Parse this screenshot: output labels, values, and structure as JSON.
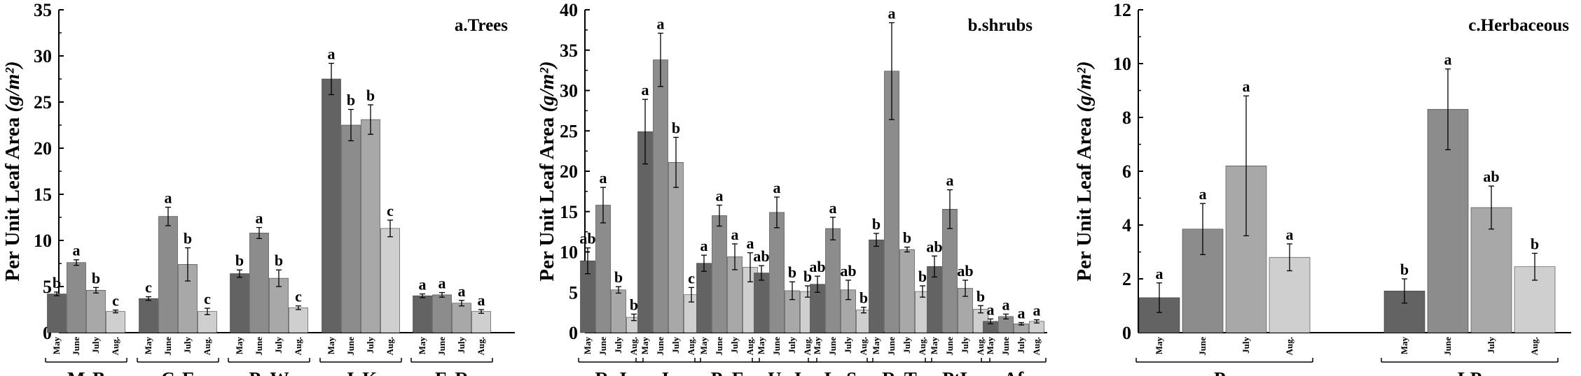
{
  "chart_data": [
    {
      "type": "bar",
      "panel_label": "a.Trees",
      "ylabel": "Per Unit Leaf Area (g/m²)",
      "ylabel_main": "Per Unit Leaf Area ",
      "ylabel_unit": "(g/m²)",
      "ylim": [
        0,
        35
      ],
      "yticks": [
        "0",
        "5",
        "10",
        "15",
        "20",
        "25",
        "30",
        "35"
      ],
      "months": [
        "May",
        "June",
        "July",
        "Aug."
      ],
      "groups": [
        {
          "name": "MsB",
          "values": [
            4.2,
            7.6,
            4.6,
            2.3
          ],
          "errors": [
            0.2,
            0.3,
            0.3,
            0.15
          ],
          "letters": [
            "b",
            "a",
            "b",
            "c"
          ]
        },
        {
          "name": "CsE",
          "values": [
            3.7,
            12.6,
            7.4,
            2.3
          ],
          "errors": [
            0.2,
            1.0,
            1.8,
            0.35
          ],
          "letters": [
            "c",
            "a",
            "b",
            "c"
          ]
        },
        {
          "name": "PaW",
          "values": [
            6.4,
            10.8,
            5.9,
            2.7
          ],
          "errors": [
            0.4,
            0.6,
            0.9,
            0.2
          ],
          "letters": [
            "b",
            "a",
            "b",
            "c"
          ]
        },
        {
          "name": "JcK",
          "values": [
            27.5,
            22.5,
            23.1,
            11.3
          ],
          "errors": [
            1.7,
            1.7,
            1.6,
            0.9
          ],
          "letters": [
            "a",
            "b",
            "b",
            "c"
          ]
        },
        {
          "name": "FcR",
          "values": [
            4.0,
            4.1,
            3.2,
            2.3
          ],
          "errors": [
            0.2,
            0.25,
            0.3,
            0.2
          ],
          "letters": [
            "a",
            "a",
            "a",
            "a"
          ]
        }
      ]
    },
    {
      "type": "bar",
      "panel_label": "b.shrubs",
      "ylabel": "Per Unit Leaf Area (g/m²)",
      "ylabel_main": "Per Unit Leaf Area ",
      "ylabel_unit": "(g/m²)",
      "ylim": [
        0,
        40
      ],
      "yticks": [
        "0",
        "5",
        "10",
        "15",
        "20",
        "25",
        "30",
        "35",
        "40"
      ],
      "months": [
        "May",
        "June",
        "July",
        "Aug."
      ],
      "groups": [
        {
          "name": "RcJ",
          "values": [
            8.9,
            15.8,
            5.3,
            1.9
          ],
          "errors": [
            1.6,
            2.2,
            0.4,
            0.4
          ],
          "letters": [
            "ab",
            "a",
            "b",
            "b"
          ]
        },
        {
          "name": "Jc",
          "values": [
            24.9,
            33.8,
            21.1,
            4.7
          ],
          "errors": [
            4.0,
            3.3,
            3.1,
            0.9
          ],
          "letters": [
            "a",
            "a",
            "b",
            "c"
          ]
        },
        {
          "name": "PoF",
          "values": [
            8.6,
            14.5,
            9.4,
            8.1
          ],
          "errors": [
            1.0,
            1.3,
            1.6,
            1.8
          ],
          "letters": [
            "a",
            "a",
            "a",
            "a"
          ]
        },
        {
          "name": "UpJ",
          "values": [
            7.4,
            14.9,
            5.2,
            5.1
          ],
          "errors": [
            0.9,
            1.9,
            1.1,
            0.7
          ],
          "letters": [
            "ab",
            "a",
            "b",
            "b"
          ]
        },
        {
          "name": "LoS",
          "values": [
            6.0,
            12.9,
            5.3,
            2.8
          ],
          "errors": [
            1.0,
            1.4,
            1.2,
            0.35
          ],
          "letters": [
            "ab",
            "a",
            "ab",
            "b"
          ]
        },
        {
          "name": "RrT",
          "values": [
            11.5,
            32.4,
            10.3,
            5.1
          ],
          "errors": [
            0.8,
            6.0,
            0.3,
            0.7
          ],
          "letters": [
            "b",
            "a",
            "b",
            "b"
          ]
        },
        {
          "name": "PtL",
          "values": [
            8.2,
            15.3,
            5.5,
            2.9
          ],
          "errors": [
            1.3,
            2.4,
            1.0,
            0.45
          ],
          "letters": [
            "ab",
            "a",
            "ab",
            "b"
          ]
        },
        {
          "name": "Af",
          "values": [
            1.4,
            2.0,
            1.1,
            1.4
          ],
          "errors": [
            0.3,
            0.3,
            0.15,
            0.2
          ],
          "letters": [
            "a",
            "a",
            "a",
            "a"
          ]
        }
      ]
    },
    {
      "type": "bar",
      "panel_label": "c.Herbaceous",
      "ylabel": "Per Unit Leaf Area (g/m²)",
      "ylabel_main": "Per Unit Leaf Area ",
      "ylabel_unit": "(g/m²)",
      "ylim": [
        0,
        12
      ],
      "yticks": [
        "0",
        "2",
        "4",
        "6",
        "8",
        "10",
        "12"
      ],
      "months": [
        "May",
        "June",
        "July",
        "Aug."
      ],
      "groups": [
        {
          "name": "Po",
          "values": [
            1.3,
            3.85,
            6.2,
            2.8
          ],
          "errors": [
            0.55,
            0.95,
            2.6,
            0.5
          ],
          "letters": [
            "a",
            "a",
            "a",
            "a"
          ]
        },
        {
          "name": "LP",
          "values": [
            1.55,
            8.3,
            4.65,
            2.45
          ],
          "errors": [
            0.45,
            1.5,
            0.8,
            0.5
          ],
          "letters": [
            "b",
            "a",
            "ab",
            "b"
          ]
        }
      ]
    }
  ],
  "colors": {
    "May": "#636363",
    "June": "#8c8c8c",
    "July": "#a8a8a8",
    "Aug.": "#cfcfcf",
    "axis": "#000000"
  }
}
